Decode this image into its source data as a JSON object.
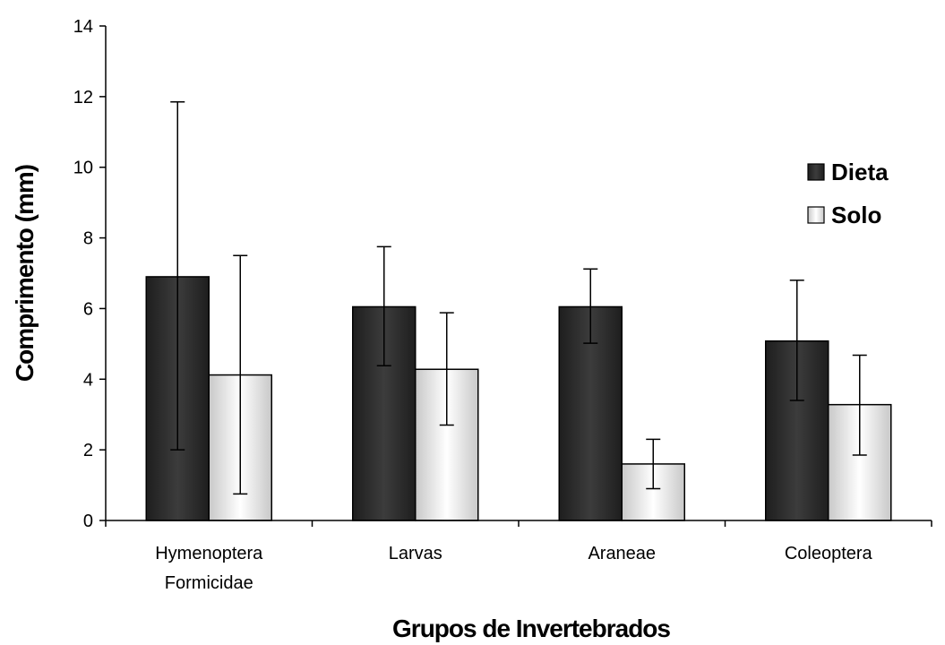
{
  "chart_data": {
    "type": "bar",
    "title": "",
    "xlabel": "Grupos de Invertebrados",
    "ylabel": "Comprimento (mm)",
    "ylim": [
      0,
      14
    ],
    "yticks": [
      0,
      2,
      4,
      6,
      8,
      10,
      12,
      14
    ],
    "grid": false,
    "legend_position": "right",
    "categories": [
      [
        "Hymenoptera",
        "Formicidae"
      ],
      [
        "Larvas"
      ],
      [
        "Araneae"
      ],
      [
        "Coleoptera"
      ]
    ],
    "series": [
      {
        "name": "Dieta",
        "color": "#333333",
        "values": [
          6.9,
          6.05,
          6.05,
          5.08
        ],
        "error_low": [
          2.0,
          4.38,
          5.02,
          3.4
        ],
        "error_high": [
          11.85,
          7.75,
          7.12,
          6.8
        ]
      },
      {
        "name": "Solo",
        "color": "#e6e6e6",
        "values": [
          4.12,
          4.28,
          1.6,
          3.28
        ],
        "error_low": [
          0.75,
          2.7,
          0.9,
          1.85
        ],
        "error_high": [
          7.5,
          5.88,
          2.3,
          4.68
        ]
      }
    ]
  }
}
